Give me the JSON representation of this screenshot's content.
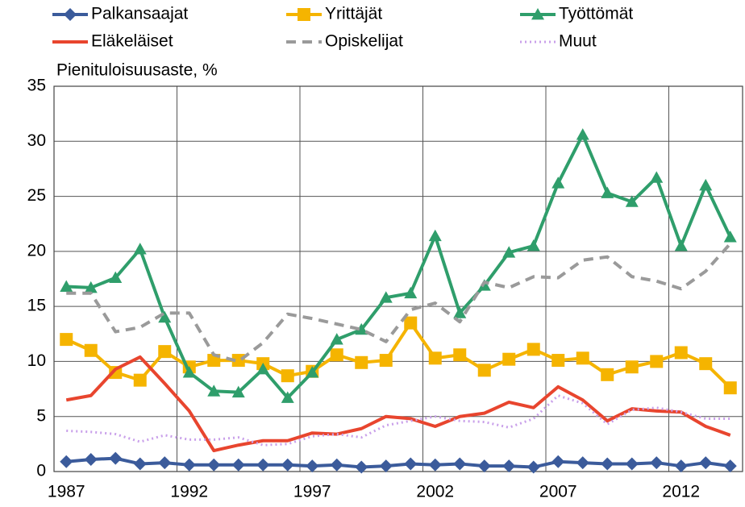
{
  "chart_data": {
    "type": "line",
    "y_label": "Pienituloisuusaste, %",
    "categories": [
      "1987",
      null,
      null,
      null,
      null,
      "1992",
      null,
      null,
      null,
      null,
      "1997",
      null,
      null,
      null,
      null,
      "2002",
      null,
      null,
      null,
      null,
      "2007",
      null,
      null,
      null,
      null,
      "2012",
      null,
      null
    ],
    "ylim": [
      0,
      35
    ],
    "yticks": [
      0,
      5,
      10,
      15,
      20,
      25,
      30,
      35
    ],
    "grid": true,
    "series": [
      {
        "name": "Palkansaajat",
        "color": "#3b5b9b",
        "marker": "diamond",
        "values": [
          0.9,
          1.1,
          1.2,
          0.7,
          0.8,
          0.6,
          0.6,
          0.6,
          0.6,
          0.6,
          0.5,
          0.6,
          0.4,
          0.5,
          0.7,
          0.6,
          0.7,
          0.5,
          0.5,
          0.4,
          0.9,
          0.8,
          0.7,
          0.7,
          0.8,
          0.5,
          0.8,
          0.5
        ]
      },
      {
        "name": "Yrittäjät",
        "color": "#f5b400",
        "marker": "square",
        "values": [
          12.0,
          11.0,
          9.0,
          8.3,
          10.9,
          9.5,
          10.1,
          10.1,
          9.8,
          8.7,
          9.1,
          10.6,
          9.9,
          10.1,
          13.5,
          10.3,
          10.6,
          9.2,
          10.2,
          11.1,
          10.1,
          10.3,
          8.8,
          9.5,
          10.0,
          10.8,
          9.8,
          7.6
        ]
      },
      {
        "name": "Työttömät",
        "color": "#2f9e6b",
        "marker": "triangle",
        "values": [
          16.8,
          16.7,
          17.6,
          20.2,
          14.0,
          9.0,
          7.3,
          7.2,
          9.3,
          6.7,
          9.0,
          12.0,
          12.9,
          15.8,
          16.2,
          21.4,
          14.4,
          16.9,
          19.9,
          20.5,
          26.2,
          30.6,
          25.3,
          24.5,
          26.7,
          20.5,
          26.0,
          21.3
        ]
      },
      {
        "name": "Eläkeläiset",
        "color": "#e8452e",
        "values": [
          6.5,
          6.9,
          9.3,
          10.4,
          8.0,
          5.5,
          1.9,
          2.4,
          2.8,
          2.8,
          3.5,
          3.4,
          3.9,
          5.0,
          4.8,
          4.1,
          5.0,
          5.3,
          6.3,
          5.8,
          7.7,
          6.5,
          4.6,
          5.7,
          5.5,
          5.4,
          4.1,
          3.3
        ]
      },
      {
        "name": "Opiskelijat",
        "color": "#9a9a9a",
        "dash": "dashed",
        "values": [
          16.2,
          16.2,
          12.7,
          13.1,
          14.4,
          14.4,
          10.6,
          10.0,
          11.7,
          14.3,
          13.9,
          13.4,
          12.9,
          11.8,
          14.7,
          15.3,
          13.6,
          17.2,
          16.7,
          17.7,
          17.6,
          19.2,
          19.5,
          17.7,
          17.3,
          16.6,
          18.2,
          20.7
        ]
      },
      {
        "name": "Muut",
        "color": "#c9a0ea",
        "dash": "dotted",
        "values": [
          3.7,
          3.6,
          3.4,
          2.7,
          3.3,
          2.9,
          2.9,
          3.1,
          2.4,
          2.5,
          3.2,
          3.4,
          3.1,
          4.2,
          4.6,
          5.0,
          4.6,
          4.5,
          4.0,
          4.8,
          6.9,
          6.2,
          4.3,
          5.6,
          5.8,
          5.4,
          4.8,
          4.8
        ]
      }
    ]
  }
}
